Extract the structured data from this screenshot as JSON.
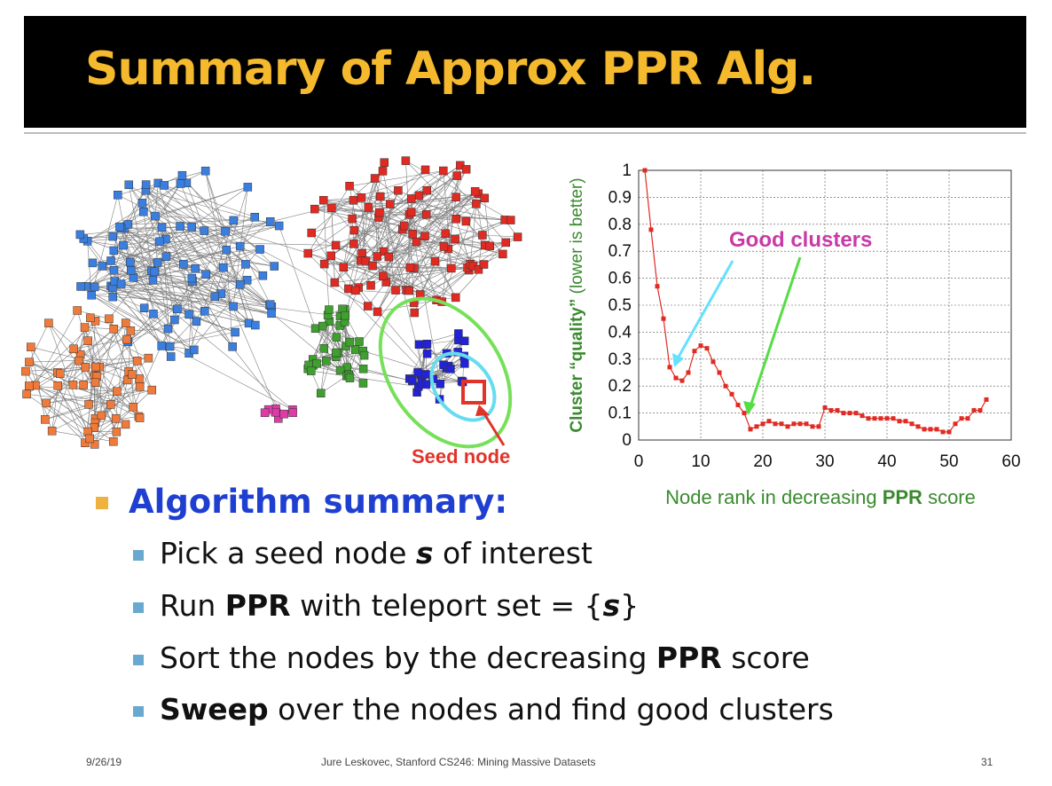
{
  "title": "Summary of Approx PPR Alg.",
  "graph": {
    "seed_label": "Seed node",
    "colors": {
      "blue": "#3a7fe0",
      "red": "#e02a22",
      "orange": "#f07a3a",
      "green": "#3f9f2f",
      "magenta": "#e03aa8",
      "darkblue": "#2222d8"
    }
  },
  "chart_data": {
    "type": "line",
    "x": [
      1,
      2,
      3,
      4,
      5,
      6,
      7,
      8,
      9,
      10,
      11,
      12,
      13,
      14,
      15,
      16,
      17,
      18,
      19,
      20,
      21,
      22,
      23,
      24,
      25,
      26,
      27,
      28,
      29,
      30,
      31,
      32,
      33,
      34,
      35,
      36,
      37,
      38,
      39,
      40,
      41,
      42,
      43,
      44,
      45,
      46,
      47,
      48,
      49,
      50,
      51,
      52,
      53,
      54,
      55,
      56
    ],
    "values": [
      1.0,
      0.78,
      0.57,
      0.45,
      0.27,
      0.23,
      0.22,
      0.25,
      0.33,
      0.35,
      0.34,
      0.29,
      0.25,
      0.2,
      0.17,
      0.13,
      0.1,
      0.04,
      0.05,
      0.06,
      0.07,
      0.06,
      0.06,
      0.05,
      0.06,
      0.06,
      0.06,
      0.05,
      0.05,
      0.12,
      0.11,
      0.11,
      0.1,
      0.1,
      0.1,
      0.09,
      0.08,
      0.08,
      0.08,
      0.08,
      0.08,
      0.07,
      0.07,
      0.06,
      0.05,
      0.04,
      0.04,
      0.04,
      0.03,
      0.03,
      0.06,
      0.08,
      0.08,
      0.11,
      0.11,
      0.15
    ],
    "xlabel_parts": [
      "Node rank in decreasing ",
      "PPR",
      " score"
    ],
    "ylabel_parts": [
      "Cluster “quality”",
      " (lower is better)"
    ],
    "xlim": [
      0,
      60
    ],
    "ylim": [
      0,
      1
    ],
    "xticks": [
      "0",
      "10",
      "20",
      "30",
      "40",
      "50",
      "60"
    ],
    "yticks": [
      "0",
      "0.1",
      "0.2",
      "0.3",
      "0.4",
      "0.5",
      "0.6",
      "0.7",
      "0.8",
      "0.9",
      "1"
    ],
    "annotation": "Good clusters",
    "grid": true,
    "colors": {
      "series": "#e02a22",
      "annotation": "#c83aa8",
      "axis_label": "#3a8a2e",
      "arrow1": "#66e0ff",
      "arrow2": "#55dd44"
    }
  },
  "bullets": {
    "heading": "Algorithm summary:",
    "items": [
      {
        "a": "Pick a seed node ",
        "b": "s",
        "c": " of interest"
      },
      {
        "a": "Run ",
        "b": "PPR",
        "c": " with teleport set = {",
        "d": "s",
        "e": "}"
      },
      {
        "a": "Sort the nodes by the decreasing ",
        "b": "PPR",
        "c": " score"
      },
      {
        "a": "Sweep",
        "b": " over the nodes and find good clusters"
      }
    ]
  },
  "footer": {
    "date": "9/26/19",
    "center": "Jure Leskovec, Stanford CS246: Mining Massive Datasets",
    "page": "31"
  }
}
